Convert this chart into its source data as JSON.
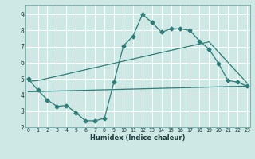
{
  "xlabel": "Humidex (Indice chaleur)",
  "bg_color": "#cde8e5",
  "grid_color": "#ffffff",
  "line_color": "#2e7d78",
  "line1_x": [
    0,
    1,
    2,
    3,
    4,
    5,
    6,
    7,
    8,
    9,
    10,
    11,
    12,
    13,
    14,
    15,
    16,
    17,
    18,
    19,
    20,
    21,
    22,
    23
  ],
  "line1_y": [
    5.0,
    4.3,
    3.7,
    3.3,
    3.35,
    2.9,
    2.4,
    2.4,
    2.55,
    4.8,
    7.05,
    7.65,
    9.0,
    8.5,
    7.9,
    8.1,
    8.1,
    8.0,
    7.35,
    6.85,
    5.95,
    4.9,
    4.8,
    4.55
  ],
  "line2_x": [
    0,
    1,
    19,
    23
  ],
  "line2_y": [
    4.85,
    4.9,
    7.3,
    4.75
  ],
  "line3_x": [
    0,
    23
  ],
  "line3_y": [
    4.2,
    4.55
  ],
  "xlim": [
    -0.3,
    23.3
  ],
  "ylim": [
    2.0,
    9.6
  ],
  "yticks": [
    2,
    3,
    4,
    5,
    6,
    7,
    8,
    9
  ],
  "xticks": [
    0,
    1,
    2,
    3,
    4,
    5,
    6,
    7,
    8,
    9,
    10,
    11,
    12,
    13,
    14,
    15,
    16,
    17,
    18,
    19,
    20,
    21,
    22,
    23
  ],
  "xlabel_fontsize": 6.0,
  "tick_fontsize_x": 4.8,
  "tick_fontsize_y": 5.5,
  "marker_size": 2.5,
  "line_width": 0.9
}
